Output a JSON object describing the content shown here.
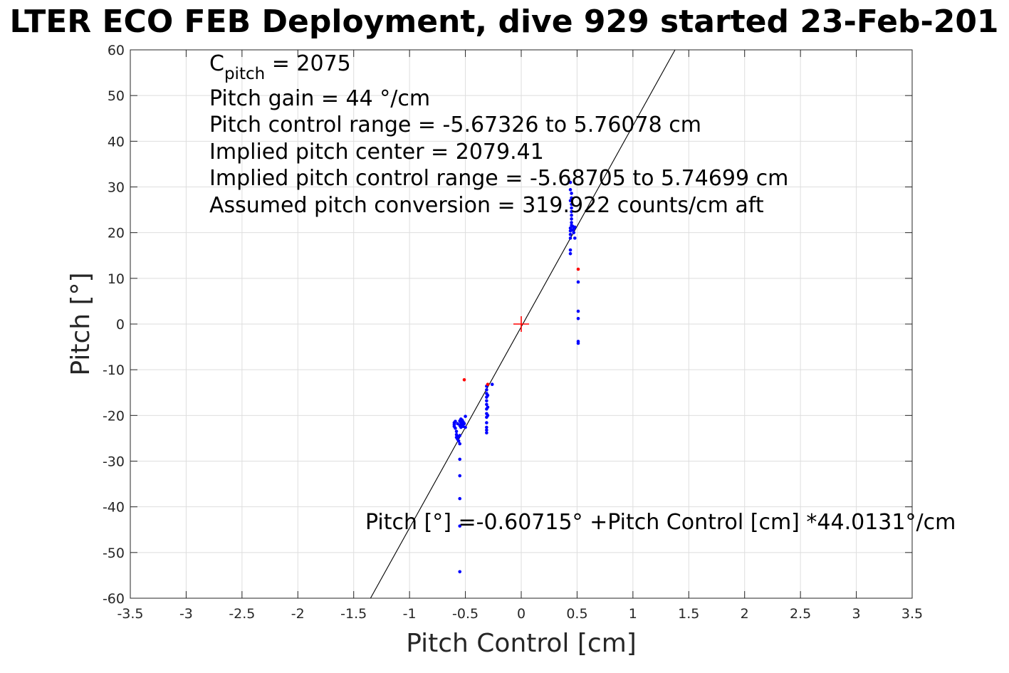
{
  "chart_data": {
    "type": "scatter",
    "title": "LTER ECO FEB Deployment, dive 929 started 23-Feb-201",
    "xlabel": "Pitch Control [cm]",
    "ylabel": "Pitch [°]",
    "xlim": [
      -3.5,
      3.5
    ],
    "ylim": [
      -60,
      60
    ],
    "grid": true,
    "xticks": [
      "-3.5",
      "-3",
      "-2.5",
      "-2",
      "-1.5",
      "-1",
      "-0.5",
      "0",
      "0.5",
      "1",
      "1.5",
      "2",
      "2.5",
      "3",
      "3.5"
    ],
    "yticks": [
      "60",
      "50",
      "40",
      "30",
      "20",
      "10",
      "0",
      "-10",
      "-20",
      "-30",
      "-40",
      "-50",
      "-60"
    ],
    "annotations": {
      "cpitch_base": "C",
      "cpitch_sub": "pitch",
      "cpitch_value": " = 2075",
      "line2": "Pitch gain = 44 °/cm",
      "line3": "Pitch control range = -5.67326 to 5.76078 cm",
      "line4": "Implied pitch center = 2079.41",
      "line5": "Implied pitch control range = -5.68705 to 5.74699 cm",
      "line6": "Assumed pitch conversion = 319.922 counts/cm aft",
      "fit_equation": "Pitch [°] =-0.60715° +Pitch Control [cm] *44.0131°/cm"
    },
    "fit_line": {
      "intercept": -0.60715,
      "slope": 44.0131,
      "color": "#000000"
    },
    "center_marker": {
      "x": 0,
      "y": 0,
      "color": "#ff0000"
    },
    "series": [
      {
        "color": "#0000ff",
        "points": [
          [
            -0.6,
            -21.6
          ],
          [
            -0.6,
            -22.0
          ],
          [
            -0.6,
            -22.4
          ],
          [
            -0.59,
            -21.3
          ],
          [
            -0.59,
            -22.8
          ],
          [
            -0.58,
            -23.5
          ],
          [
            -0.58,
            -24.2
          ],
          [
            -0.58,
            -24.8
          ],
          [
            -0.57,
            -25.2
          ],
          [
            -0.57,
            -21.8
          ],
          [
            -0.56,
            -24.6
          ],
          [
            -0.56,
            -25.6
          ],
          [
            -0.55,
            -21.2
          ],
          [
            -0.55,
            -22.2
          ],
          [
            -0.55,
            -24.4
          ],
          [
            -0.55,
            -26.2
          ],
          [
            -0.54,
            -20.8
          ],
          [
            -0.54,
            -21.6
          ],
          [
            -0.54,
            -22.6
          ],
          [
            -0.53,
            -21.0
          ],
          [
            -0.53,
            -22.0
          ],
          [
            -0.52,
            -21.4
          ],
          [
            -0.52,
            -22.4
          ],
          [
            -0.51,
            -21.8
          ],
          [
            -0.5,
            -22.6
          ],
          [
            -0.5,
            -20.2
          ],
          [
            -0.55,
            -29.6
          ],
          [
            -0.55,
            -33.2
          ],
          [
            -0.55,
            -38.2
          ],
          [
            -0.55,
            -44.2
          ],
          [
            -0.55,
            -54.2
          ],
          [
            -0.31,
            -13.6
          ],
          [
            -0.31,
            -14.4
          ],
          [
            -0.31,
            -15.2
          ],
          [
            -0.31,
            -16.0
          ],
          [
            -0.31,
            -16.8
          ],
          [
            -0.31,
            -17.6
          ],
          [
            -0.31,
            -18.6
          ],
          [
            -0.31,
            -19.6
          ],
          [
            -0.31,
            -20.4
          ],
          [
            -0.31,
            -21.6
          ],
          [
            -0.31,
            -22.6
          ],
          [
            -0.31,
            -23.2
          ],
          [
            -0.31,
            -23.8
          ],
          [
            -0.3,
            -15.6
          ],
          [
            -0.3,
            -18.2
          ],
          [
            -0.3,
            -20.0
          ],
          [
            -0.26,
            -13.2
          ],
          [
            0.44,
            31.0
          ],
          [
            0.44,
            29.4
          ],
          [
            0.45,
            28.6
          ],
          [
            0.45,
            27.6
          ],
          [
            0.44,
            27.0
          ],
          [
            0.45,
            26.2
          ],
          [
            0.45,
            25.4
          ],
          [
            0.45,
            24.6
          ],
          [
            0.45,
            23.8
          ],
          [
            0.45,
            23.0
          ],
          [
            0.45,
            22.2
          ],
          [
            0.45,
            21.6
          ],
          [
            0.44,
            21.0
          ],
          [
            0.44,
            20.4
          ],
          [
            0.44,
            19.6
          ],
          [
            0.44,
            18.8
          ],
          [
            0.46,
            20.6
          ],
          [
            0.46,
            21.4
          ],
          [
            0.47,
            20.0
          ],
          [
            0.47,
            20.8
          ],
          [
            0.48,
            21.2
          ],
          [
            0.48,
            18.8
          ],
          [
            0.44,
            16.2
          ],
          [
            0.44,
            15.4
          ],
          [
            0.51,
            9.2
          ],
          [
            0.51,
            2.8
          ],
          [
            0.51,
            1.2
          ],
          [
            0.51,
            -3.8
          ],
          [
            0.51,
            -4.2
          ]
        ]
      },
      {
        "color": "#ff0000",
        "points": [
          [
            -0.51,
            -12.2
          ],
          [
            -0.3,
            -13.2
          ],
          [
            0.51,
            12.0
          ]
        ]
      }
    ]
  }
}
